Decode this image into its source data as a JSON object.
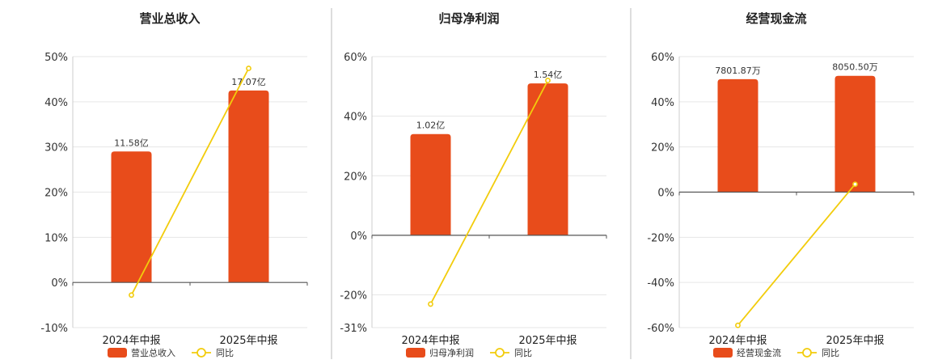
{
  "colors": {
    "bar": "#E84C1B",
    "line": "#F2CC0C",
    "divider": "#BBBBBB",
    "grid": "#E6E6E6",
    "axis": "#555555"
  },
  "legend": {
    "line_label": "同比",
    "bar_icon": "rounded-rect-swatch",
    "line_icon": "line-circle-marker"
  },
  "chart_data": [
    {
      "type": "bar",
      "title": "营业总收入",
      "categories": [
        "2024年中报",
        "2025年中报"
      ],
      "y_ticks": [
        "50%",
        "40%",
        "30%",
        "20%",
        "10%",
        "0%",
        "-10%"
      ],
      "ylim": [
        -10,
        50
      ],
      "grid": true,
      "legend_position": "bottom",
      "series": [
        {
          "name": "营业总收入",
          "kind": "bar",
          "values": [
            29,
            42.5
          ],
          "labels": [
            "11.58亿",
            "17.07亿"
          ]
        },
        {
          "name": "同比",
          "kind": "line",
          "values": [
            -2.8,
            47.4
          ]
        }
      ]
    },
    {
      "type": "bar",
      "title": "归母净利润",
      "categories": [
        "2024年中报",
        "2025年中报"
      ],
      "y_ticks": [
        "60%",
        "40%",
        "20%",
        "0%",
        "-20%",
        "-31%"
      ],
      "ylim": [
        -31,
        60
      ],
      "grid": true,
      "legend_position": "bottom",
      "series": [
        {
          "name": "归母净利润",
          "kind": "bar",
          "values": [
            34,
            51
          ],
          "labels": [
            "1.02亿",
            "1.54亿"
          ]
        },
        {
          "name": "同比",
          "kind": "line",
          "values": [
            -23.1,
            52
          ]
        }
      ]
    },
    {
      "type": "bar",
      "title": "经营现金流",
      "categories": [
        "2024年中报",
        "2025年中报"
      ],
      "y_ticks": [
        "60%",
        "40%",
        "20%",
        "0%",
        "-20%",
        "-40%",
        "-60%"
      ],
      "ylim": [
        -60,
        60
      ],
      "grid": true,
      "legend_position": "bottom",
      "series": [
        {
          "name": "经营现金流",
          "kind": "bar",
          "values": [
            50,
            51.5
          ],
          "labels": [
            "7801.87万",
            "8050.50万"
          ]
        },
        {
          "name": "同比",
          "kind": "line",
          "values": [
            -59,
            3.5
          ]
        }
      ]
    }
  ]
}
